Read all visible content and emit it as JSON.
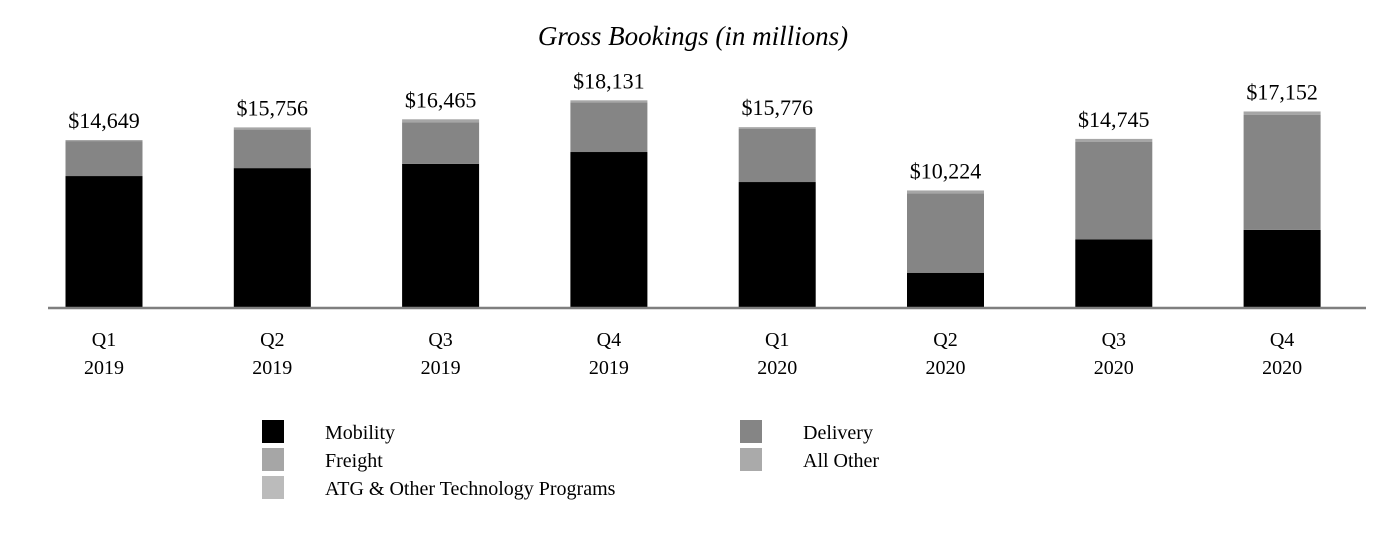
{
  "chart_data": {
    "type": "bar",
    "stacked": true,
    "title": "Gross Bookings (in millions)",
    "xlabel": "",
    "ylabel": "",
    "ylim": [
      0,
      20000
    ],
    "grid": false,
    "legend_position": "bottom",
    "categories": [
      [
        "Q1",
        "2019"
      ],
      [
        "Q2",
        "2019"
      ],
      [
        "Q3",
        "2019"
      ],
      [
        "Q4",
        "2019"
      ],
      [
        "Q1",
        "2020"
      ],
      [
        "Q2",
        "2020"
      ],
      [
        "Q3",
        "2020"
      ],
      [
        "Q4",
        "2020"
      ]
    ],
    "totals": [
      14649,
      15756,
      16465,
      18131,
      15776,
      10224,
      14745,
      17152
    ],
    "total_labels": [
      "$14,649",
      "$15,756",
      "$16,465",
      "$18,131",
      "$15,776",
      "$10,224",
      "$14,745",
      "$17,152"
    ],
    "series": [
      {
        "name": "Mobility",
        "color": "#000000",
        "values": [
          11487,
          12183,
          12549,
          13595,
          10962,
          3004,
          5925,
          6767
        ]
      },
      {
        "name": "Delivery",
        "color": "#858585",
        "values": [
          3067,
          3379,
          3661,
          4363,
          4683,
          6961,
          8549,
          10105
        ]
      },
      {
        "name": "Freight",
        "color": "#a6a6a6",
        "values": [
          95,
          194,
          255,
          173,
          131,
          259,
          271,
          280
        ]
      },
      {
        "name": "All Other",
        "color": "#aaaaaa",
        "values": [
          0,
          0,
          0,
          0,
          0,
          0,
          0,
          0
        ]
      },
      {
        "name": "ATG & Other Technology Programs",
        "color": "#bbbbbb",
        "values": [
          0,
          0,
          0,
          0,
          0,
          0,
          0,
          0
        ]
      }
    ],
    "legend": [
      {
        "name": "Mobility",
        "color": "#000000"
      },
      {
        "name": "Delivery",
        "color": "#858585"
      },
      {
        "name": "Freight",
        "color": "#a6a6a6"
      },
      {
        "name": "All Other",
        "color": "#aaaaaa"
      },
      {
        "name": "ATG & Other Technology Programs",
        "color": "#bbbbbb"
      }
    ],
    "axis_color": "#7f7f7f"
  }
}
